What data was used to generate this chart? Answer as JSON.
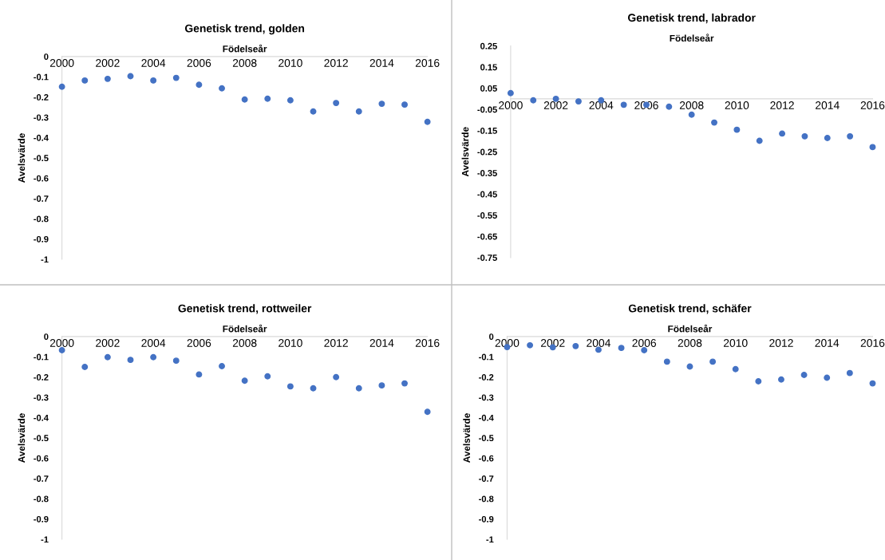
{
  "chart_data": [
    {
      "type": "scatter",
      "title": "Genetisk trend, golden",
      "xlabel": "Födelseår",
      "ylabel": "Avelsvärde",
      "marker": "circle",
      "grid": false,
      "x": [
        2000,
        2001,
        2002,
        2003,
        2004,
        2005,
        2006,
        2007,
        2008,
        2009,
        2010,
        2011,
        2012,
        2013,
        2014,
        2015,
        2016
      ],
      "series": [
        {
          "color": "#4472c4",
          "values": [
            -0.149,
            -0.118,
            -0.11,
            -0.097,
            -0.118,
            -0.105,
            -0.139,
            -0.157,
            -0.212,
            -0.208,
            -0.216,
            -0.271,
            -0.229,
            -0.271,
            -0.233,
            -0.237,
            -0.322
          ]
        }
      ],
      "xlim": [
        2000,
        2016
      ],
      "xticks": [
        2000,
        2002,
        2004,
        2006,
        2008,
        2010,
        2012,
        2014,
        2016
      ],
      "ylim": [
        -1,
        0
      ],
      "yticks": [
        0,
        -0.1,
        -0.2,
        -0.3,
        -0.4,
        -0.5,
        -0.6,
        -0.7,
        -0.8,
        -0.9,
        -1
      ]
    },
    {
      "type": "scatter",
      "title": "Genetisk trend, labrador",
      "xlabel": "Födelseår",
      "ylabel": "Avelsvärde",
      "marker": "circle",
      "grid": false,
      "x": [
        2000,
        2001,
        2002,
        2003,
        2004,
        2005,
        2006,
        2007,
        2008,
        2009,
        2010,
        2011,
        2012,
        2013,
        2014,
        2015,
        2016
      ],
      "series": [
        {
          "color": "#4472c4",
          "values": [
            0.027,
            -0.007,
            0.0,
            -0.012,
            -0.007,
            -0.028,
            -0.028,
            -0.037,
            -0.075,
            -0.112,
            -0.146,
            -0.198,
            -0.164,
            -0.177,
            -0.185,
            -0.177,
            -0.228
          ]
        }
      ],
      "xlim": [
        2000,
        2016
      ],
      "xticks": [
        2000,
        2002,
        2004,
        2006,
        2008,
        2010,
        2012,
        2014,
        2016
      ],
      "ylim": [
        -0.75,
        0.25
      ],
      "yticks": [
        0.25,
        0.15,
        0.05,
        -0.05,
        -0.15,
        -0.25,
        -0.35,
        -0.45,
        -0.55,
        -0.65,
        -0.75
      ]
    },
    {
      "type": "scatter",
      "title": "Genetisk trend, rottweiler",
      "xlabel": "Födelseår",
      "ylabel": "Avelsvärde",
      "marker": "circle",
      "grid": false,
      "x": [
        2000,
        2001,
        2002,
        2003,
        2004,
        2005,
        2006,
        2007,
        2008,
        2009,
        2010,
        2011,
        2012,
        2013,
        2014,
        2015,
        2016
      ],
      "series": [
        {
          "color": "#4472c4",
          "values": [
            -0.067,
            -0.15,
            -0.102,
            -0.115,
            -0.102,
            -0.119,
            -0.187,
            -0.146,
            -0.218,
            -0.196,
            -0.246,
            -0.255,
            -0.2,
            -0.255,
            -0.241,
            -0.231,
            -0.371
          ]
        }
      ],
      "xlim": [
        2000,
        2016
      ],
      "xticks": [
        2000,
        2002,
        2004,
        2006,
        2008,
        2010,
        2012,
        2014,
        2016
      ],
      "ylim": [
        -1,
        0
      ],
      "yticks": [
        0,
        -0.1,
        -0.2,
        -0.3,
        -0.4,
        -0.5,
        -0.6,
        -0.7,
        -0.8,
        -0.9,
        -1
      ]
    },
    {
      "type": "scatter",
      "title": "Genetisk trend, schäfer",
      "xlabel": "Födelseår",
      "ylabel": "Avelsvärde",
      "marker": "circle",
      "grid": false,
      "x": [
        2000,
        2001,
        2002,
        2003,
        2004,
        2005,
        2006,
        2007,
        2008,
        2009,
        2010,
        2011,
        2012,
        2013,
        2014,
        2015,
        2016
      ],
      "series": [
        {
          "color": "#4472c4",
          "values": [
            -0.052,
            -0.043,
            -0.053,
            -0.047,
            -0.065,
            -0.056,
            -0.067,
            -0.124,
            -0.148,
            -0.124,
            -0.161,
            -0.221,
            -0.212,
            -0.189,
            -0.203,
            -0.18,
            -0.231
          ]
        }
      ],
      "xlim": [
        2000,
        2016
      ],
      "xticks": [
        2000,
        2002,
        2004,
        2006,
        2008,
        2010,
        2012,
        2014,
        2016
      ],
      "ylim": [
        -1,
        0
      ],
      "yticks": [
        0,
        -0.1,
        -0.2,
        -0.3,
        -0.4,
        -0.5,
        -0.6,
        -0.7,
        -0.8,
        -0.9,
        -1
      ]
    }
  ]
}
